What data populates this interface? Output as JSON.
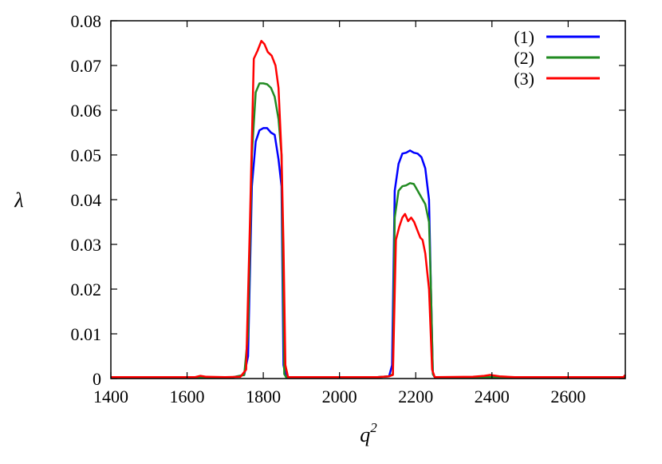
{
  "chart_data": {
    "type": "line",
    "title": "",
    "xlabel": "q",
    "xlabel_superscript": "2",
    "ylabel": "λ",
    "xlim": [
      1400,
      2750
    ],
    "ylim": [
      0,
      0.08
    ],
    "x_ticks": [
      1400,
      1600,
      1800,
      2000,
      2200,
      2400,
      2600
    ],
    "x_tick_labels": [
      "1400",
      "1600",
      "1800",
      "2000",
      "2200",
      "2400",
      "2600"
    ],
    "y_ticks": [
      0,
      0.01,
      0.02,
      0.03,
      0.04,
      0.05,
      0.06,
      0.07,
      0.08
    ],
    "y_tick_labels": [
      "0",
      "0.01",
      "0.02",
      "0.03",
      "0.04",
      "0.05",
      "0.06",
      "0.07",
      "0.08"
    ],
    "grid": false,
    "legend_position": "top-right",
    "series": [
      {
        "name": "(1)",
        "color": "#0000ff",
        "points": [
          [
            1400,
            0.0003
          ],
          [
            1600,
            0.0003
          ],
          [
            1720,
            0.0003
          ],
          [
            1750,
            0.0008
          ],
          [
            1760,
            0.005
          ],
          [
            1770,
            0.043
          ],
          [
            1780,
            0.053
          ],
          [
            1790,
            0.0555
          ],
          [
            1800,
            0.056
          ],
          [
            1810,
            0.056
          ],
          [
            1820,
            0.055
          ],
          [
            1830,
            0.0545
          ],
          [
            1840,
            0.049
          ],
          [
            1848,
            0.043
          ],
          [
            1853,
            0.003
          ],
          [
            1860,
            0.0003
          ],
          [
            2100,
            0.0003
          ],
          [
            2130,
            0.0005
          ],
          [
            2138,
            0.003
          ],
          [
            2145,
            0.042
          ],
          [
            2155,
            0.048
          ],
          [
            2165,
            0.0503
          ],
          [
            2175,
            0.0505
          ],
          [
            2185,
            0.051
          ],
          [
            2195,
            0.0505
          ],
          [
            2205,
            0.0503
          ],
          [
            2215,
            0.0495
          ],
          [
            2225,
            0.047
          ],
          [
            2235,
            0.04
          ],
          [
            2240,
            0.02
          ],
          [
            2245,
            0.001
          ],
          [
            2250,
            0.0003
          ],
          [
            2750,
            0.0003
          ]
        ]
      },
      {
        "name": "(2)",
        "color": "#228b22",
        "points": [
          [
            1400,
            0.0003
          ],
          [
            1600,
            0.0003
          ],
          [
            1720,
            0.0003
          ],
          [
            1750,
            0.0008
          ],
          [
            1760,
            0.01
          ],
          [
            1770,
            0.05
          ],
          [
            1780,
            0.064
          ],
          [
            1790,
            0.066
          ],
          [
            1800,
            0.066
          ],
          [
            1810,
            0.0658
          ],
          [
            1820,
            0.065
          ],
          [
            1830,
            0.063
          ],
          [
            1840,
            0.058
          ],
          [
            1848,
            0.05
          ],
          [
            1855,
            0.001
          ],
          [
            1860,
            0.0003
          ],
          [
            2100,
            0.0003
          ],
          [
            2130,
            0.0005
          ],
          [
            2140,
            0.001
          ],
          [
            2145,
            0.036
          ],
          [
            2155,
            0.042
          ],
          [
            2165,
            0.043
          ],
          [
            2175,
            0.0432
          ],
          [
            2185,
            0.0437
          ],
          [
            2195,
            0.0435
          ],
          [
            2205,
            0.042
          ],
          [
            2215,
            0.0405
          ],
          [
            2225,
            0.039
          ],
          [
            2235,
            0.035
          ],
          [
            2240,
            0.02
          ],
          [
            2245,
            0.001
          ],
          [
            2250,
            0.0003
          ],
          [
            2750,
            0.0003
          ]
        ]
      },
      {
        "name": "(3)",
        "color": "#ff0000",
        "points": [
          [
            1400,
            0.0003
          ],
          [
            1600,
            0.0003
          ],
          [
            1620,
            0.0003
          ],
          [
            1635,
            0.0006
          ],
          [
            1650,
            0.0004
          ],
          [
            1700,
            0.0003
          ],
          [
            1740,
            0.0004
          ],
          [
            1755,
            0.002
          ],
          [
            1765,
            0.035
          ],
          [
            1775,
            0.0715
          ],
          [
            1785,
            0.0733
          ],
          [
            1795,
            0.0755
          ],
          [
            1803,
            0.0748
          ],
          [
            1812,
            0.073
          ],
          [
            1822,
            0.0722
          ],
          [
            1832,
            0.07
          ],
          [
            1840,
            0.065
          ],
          [
            1848,
            0.05
          ],
          [
            1853,
            0.03
          ],
          [
            1858,
            0.003
          ],
          [
            1865,
            0.0003
          ],
          [
            2100,
            0.0003
          ],
          [
            2130,
            0.0005
          ],
          [
            2140,
            0.0008
          ],
          [
            2148,
            0.031
          ],
          [
            2157,
            0.034
          ],
          [
            2165,
            0.036
          ],
          [
            2172,
            0.0368
          ],
          [
            2180,
            0.0352
          ],
          [
            2188,
            0.036
          ],
          [
            2196,
            0.035
          ],
          [
            2205,
            0.033
          ],
          [
            2212,
            0.0315
          ],
          [
            2218,
            0.031
          ],
          [
            2225,
            0.028
          ],
          [
            2235,
            0.02
          ],
          [
            2243,
            0.002
          ],
          [
            2250,
            0.0003
          ],
          [
            2350,
            0.0004
          ],
          [
            2380,
            0.0006
          ],
          [
            2395,
            0.0008
          ],
          [
            2420,
            0.0005
          ],
          [
            2460,
            0.0003
          ],
          [
            2745,
            0.0003
          ],
          [
            2750,
            0.0008
          ]
        ]
      }
    ]
  }
}
